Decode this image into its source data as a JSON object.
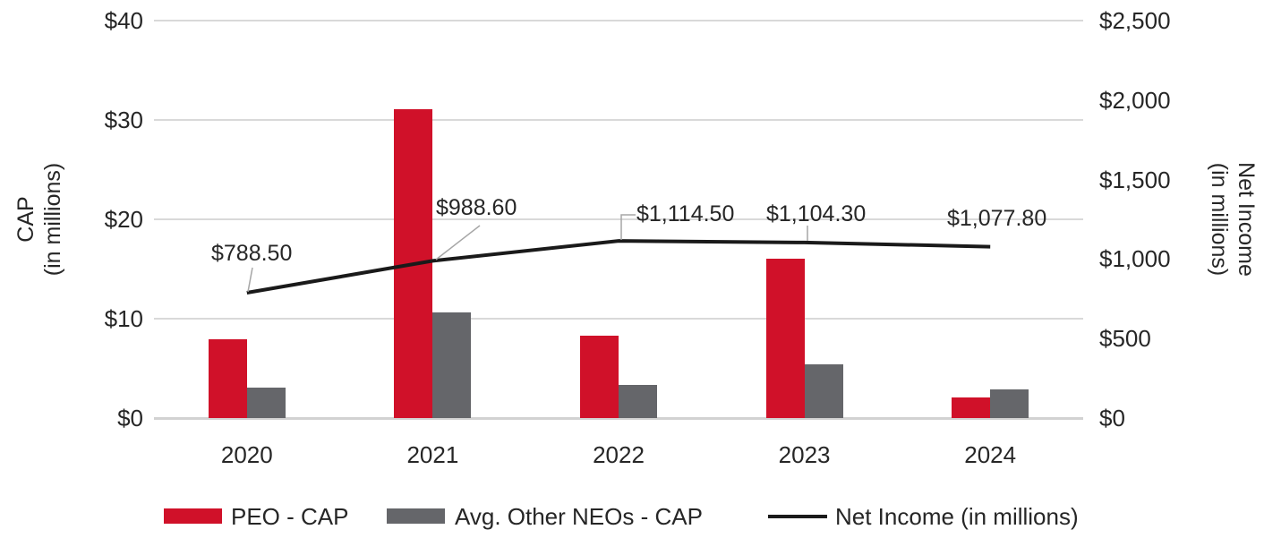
{
  "chart_data": {
    "type": "combo-bar-line",
    "categories": [
      "2020",
      "2021",
      "2022",
      "2023",
      "2024"
    ],
    "series": [
      {
        "name": "PEO - CAP",
        "type": "bar",
        "axis": "left",
        "color": "#d01129",
        "values": [
          7.9,
          31.1,
          8.3,
          16.0,
          2.1
        ]
      },
      {
        "name": "Avg. Other NEOs - CAP",
        "type": "bar",
        "axis": "left",
        "color": "#65666a",
        "values": [
          3.1,
          10.6,
          3.3,
          5.4,
          2.9
        ]
      },
      {
        "name": "Net Income (in millions)",
        "type": "line",
        "axis": "right",
        "color": "#1a1a1a",
        "values": [
          788.5,
          988.6,
          1114.5,
          1104.3,
          1077.8
        ],
        "data_labels": [
          "$788.50",
          "$988.60",
          "$1,114.50",
          "$1,104.30",
          "$1,077.80"
        ]
      }
    ],
    "left_axis": {
      "title": [
        "CAP",
        "(in millions)"
      ],
      "ticks": [
        "$0",
        "$10",
        "$20",
        "$30",
        "$40"
      ],
      "tick_values": [
        0,
        10,
        20,
        30,
        40
      ],
      "min": 0,
      "max": 40,
      "grid": true
    },
    "right_axis": {
      "title": [
        "Net Income",
        "(in millions)"
      ],
      "ticks": [
        "$0",
        "$500",
        "$1,000",
        "$1,500",
        "$2,000",
        "$2,500"
      ],
      "tick_values": [
        0,
        500,
        1000,
        1500,
        2000,
        2500
      ],
      "min": 0,
      "max": 2500,
      "grid": false
    },
    "legend": {
      "position": "bottom",
      "entries": [
        "PEO - CAP",
        "Avg. Other NEOs - CAP",
        "Net Income (in millions)"
      ]
    },
    "colors": {
      "grid": "#d9d9d9",
      "axis_line": "#d2d2d2",
      "text": "#262626",
      "leader": "#a6a6a6"
    }
  }
}
